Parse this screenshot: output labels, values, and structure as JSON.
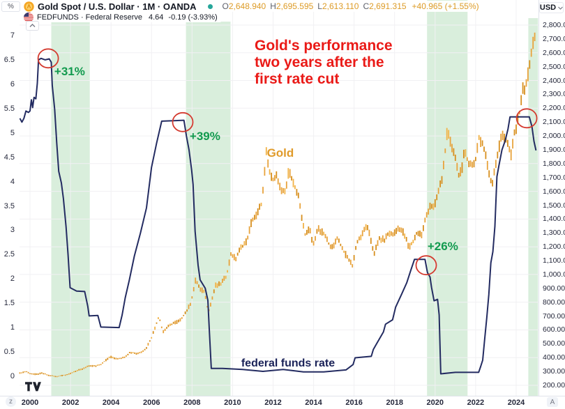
{
  "header": {
    "left_scale_unit": "%",
    "symbol_row": {
      "title": "Gold Spot / U.S. Dollar · 1M · OANDA",
      "ohlc": {
        "o_label": "O",
        "o": "2,648.940",
        "h_label": "H",
        "h": "2,695.595",
        "l_label": "L",
        "l": "2,613.110",
        "c_label": "C",
        "c": "2,691.315",
        "change": "+40.965 (+1.55%)"
      }
    },
    "indicator_row": {
      "title": "FEDFUNDS · Federal Reserve",
      "value": "4.64",
      "change": "-0.19 (-3.93%)"
    },
    "currency_selector": "USD"
  },
  "footer": {
    "zoom_button": "z",
    "auto_button": "A"
  },
  "annotations": {
    "title_lines": [
      "Gold's performance",
      "two years after the",
      "first rate cut"
    ],
    "gold_label": {
      "text": "Gold",
      "year": 2012.36,
      "price": 1875
    },
    "fed_label": {
      "text": "federal funds rate",
      "year": 2012.74,
      "rate": 0.26
    },
    "gains": [
      {
        "label": "+31%",
        "year": 2001.96,
        "rate": 6.26
      },
      {
        "label": "+39%",
        "year": 2008.64,
        "rate": 4.92
      },
      {
        "label": "+26%",
        "year": 2020.38,
        "rate": 2.66
      }
    ],
    "circles": [
      {
        "year": 2000.9,
        "rate": 6.53
      },
      {
        "year": 2007.54,
        "rate": 5.22
      },
      {
        "year": 2019.56,
        "rate": 2.28
      },
      {
        "year": 2024.52,
        "rate": 5.3
      }
    ]
  },
  "colors": {
    "gold": "#e8a33c",
    "gold_dark": "#d78f1e",
    "gold_light": "#f2b347",
    "fed_line": "#232b61",
    "band": "#d9eedc",
    "circle": "#d43a2f",
    "grid": "#f1f0f3",
    "title_red": "#ea1a17",
    "gain_green": "#129a4e",
    "status_green": "#26a69a"
  },
  "chart_data": {
    "type": "mixed",
    "title": "Gold's performance two years after the first rate cut",
    "x_ticks": [
      "2000",
      "2002",
      "2004",
      "2006",
      "2008",
      "2010",
      "2012",
      "2014",
      "2016",
      "2018",
      "2020",
      "2022",
      "2024"
    ],
    "left_axis": {
      "unit": "%",
      "min": 0,
      "max": 7,
      "tick_step": 0.5,
      "tick_labels": [
        "7",
        "6.5",
        "6",
        "5.5",
        "5",
        "4.5",
        "4",
        "3.5",
        "3",
        "2.5",
        "2",
        "1.5",
        "1",
        "0.5",
        "0"
      ]
    },
    "right_axis": {
      "currency": "USD",
      "min": 200,
      "max": 2800,
      "tick_step": 100,
      "grid_step": 200,
      "tick_labels": [
        "2,800.000",
        "2,700.000",
        "2,600.000",
        "2,500.000",
        "2,400.000",
        "2,300.000",
        "2,200.000",
        "2,100.000",
        "2,000.000",
        "1,900.000",
        "1,800.000",
        "1,700.000",
        "1,600.000",
        "1,500.000",
        "1,400.000",
        "1,300.000",
        "1,200.000",
        "1,100.000",
        "1,000.000",
        "900.000",
        "800.000",
        "700.000",
        "600.000",
        "500.000",
        "400.000",
        "300.000",
        "200.000"
      ]
    },
    "highlight_bands": [
      {
        "start": 2001.05,
        "end": 2002.95,
        "gain": "+31%"
      },
      {
        "start": 2007.7,
        "end": 2009.9,
        "gain": "+39%"
      },
      {
        "start": 2019.6,
        "end": 2021.6,
        "gain": "+26%"
      },
      {
        "start": 2024.6,
        "end": 2025.08,
        "gain": null
      }
    ],
    "series": [
      {
        "name": "Gold Spot / U.S. Dollar",
        "type": "ohlc_bars",
        "axis": "right",
        "color": "#e8a33c",
        "points": [
          [
            1999.5,
            288
          ],
          [
            1999.8,
            300
          ],
          [
            2000.0,
            285
          ],
          [
            2000.3,
            279
          ],
          [
            2000.6,
            288
          ],
          [
            2000.9,
            272
          ],
          [
            2001.3,
            262
          ],
          [
            2001.6,
            272
          ],
          [
            2001.9,
            278
          ],
          [
            2002.2,
            300
          ],
          [
            2002.6,
            318
          ],
          [
            2002.95,
            342
          ],
          [
            2003.2,
            338
          ],
          [
            2003.5,
            352
          ],
          [
            2003.95,
            406
          ],
          [
            2004.3,
            392
          ],
          [
            2004.6,
            398
          ],
          [
            2004.95,
            438
          ],
          [
            2005.3,
            428
          ],
          [
            2005.7,
            458
          ],
          [
            2006.0,
            545
          ],
          [
            2006.37,
            700
          ],
          [
            2006.55,
            585
          ],
          [
            2006.8,
            620
          ],
          [
            2007.1,
            650
          ],
          [
            2007.4,
            665
          ],
          [
            2007.75,
            740
          ],
          [
            2007.95,
            800
          ],
          [
            2008.18,
            965
          ],
          [
            2008.4,
            890
          ],
          [
            2008.6,
            880
          ],
          [
            2008.8,
            730
          ],
          [
            2008.95,
            800
          ],
          [
            2009.15,
            920
          ],
          [
            2009.4,
            930
          ],
          [
            2009.7,
            990
          ],
          [
            2009.92,
            1150
          ],
          [
            2010.15,
            1110
          ],
          [
            2010.4,
            1190
          ],
          [
            2010.7,
            1240
          ],
          [
            2010.95,
            1390
          ],
          [
            2011.2,
            1430
          ],
          [
            2011.45,
            1520
          ],
          [
            2011.67,
            1880
          ],
          [
            2011.8,
            1750
          ],
          [
            2011.95,
            1680
          ],
          [
            2012.15,
            1720
          ],
          [
            2012.4,
            1590
          ],
          [
            2012.62,
            1610
          ],
          [
            2012.78,
            1755
          ],
          [
            2013.0,
            1665
          ],
          [
            2013.25,
            1560
          ],
          [
            2013.45,
            1380
          ],
          [
            2013.6,
            1280
          ],
          [
            2013.8,
            1330
          ],
          [
            2013.98,
            1210
          ],
          [
            2014.2,
            1330
          ],
          [
            2014.5,
            1290
          ],
          [
            2014.75,
            1225
          ],
          [
            2014.95,
            1185
          ],
          [
            2015.15,
            1270
          ],
          [
            2015.4,
            1190
          ],
          [
            2015.65,
            1125
          ],
          [
            2015.92,
            1065
          ],
          [
            2016.15,
            1235
          ],
          [
            2016.4,
            1285
          ],
          [
            2016.6,
            1355
          ],
          [
            2016.8,
            1270
          ],
          [
            2016.98,
            1150
          ],
          [
            2017.25,
            1255
          ],
          [
            2017.5,
            1250
          ],
          [
            2017.7,
            1295
          ],
          [
            2017.95,
            1290
          ],
          [
            2018.2,
            1340
          ],
          [
            2018.45,
            1300
          ],
          [
            2018.7,
            1195
          ],
          [
            2018.9,
            1230
          ],
          [
            2019.1,
            1300
          ],
          [
            2019.35,
            1290
          ],
          [
            2019.55,
            1415
          ],
          [
            2019.75,
            1500
          ],
          [
            2019.95,
            1480
          ],
          [
            2020.15,
            1590
          ],
          [
            2020.35,
            1700
          ],
          [
            2020.6,
            2030
          ],
          [
            2020.78,
            1935
          ],
          [
            2020.95,
            1885
          ],
          [
            2021.15,
            1720
          ],
          [
            2021.35,
            1770
          ],
          [
            2021.45,
            1900
          ],
          [
            2021.65,
            1805
          ],
          [
            2021.85,
            1780
          ],
          [
            2022.0,
            1830
          ],
          [
            2022.15,
            1990
          ],
          [
            2022.35,
            1935
          ],
          [
            2022.55,
            1820
          ],
          [
            2022.7,
            1710
          ],
          [
            2022.8,
            1640
          ],
          [
            2022.95,
            1775
          ],
          [
            2023.1,
            1875
          ],
          [
            2023.25,
            1985
          ],
          [
            2023.35,
            2020
          ],
          [
            2023.55,
            1950
          ],
          [
            2023.75,
            1860
          ],
          [
            2023.9,
            2005
          ],
          [
            2024.0,
            2060
          ],
          [
            2024.15,
            2150
          ],
          [
            2024.3,
            2330
          ],
          [
            2024.45,
            2350
          ],
          [
            2024.6,
            2450
          ],
          [
            2024.72,
            2560
          ],
          [
            2024.85,
            2680
          ],
          [
            2024.95,
            2740
          ]
        ]
      },
      {
        "name": "Federal funds rate",
        "type": "line",
        "axis": "left",
        "color": "#232b61",
        "points": [
          [
            1999.5,
            5.3
          ],
          [
            1999.6,
            5.22
          ],
          [
            1999.7,
            5.3
          ],
          [
            1999.8,
            5.45
          ],
          [
            1999.92,
            5.42
          ],
          [
            2000.0,
            5.45
          ],
          [
            2000.07,
            5.68
          ],
          [
            2000.13,
            5.52
          ],
          [
            2000.2,
            5.73
          ],
          [
            2000.29,
            5.7
          ],
          [
            2000.36,
            6.02
          ],
          [
            2000.42,
            6.5
          ],
          [
            2000.55,
            6.53
          ],
          [
            2000.75,
            6.5
          ],
          [
            2000.95,
            6.52
          ],
          [
            2001.05,
            6.45
          ],
          [
            2001.1,
            5.98
          ],
          [
            2001.22,
            5.48
          ],
          [
            2001.32,
            4.8
          ],
          [
            2001.42,
            4.21
          ],
          [
            2001.55,
            3.97
          ],
          [
            2001.65,
            3.65
          ],
          [
            2001.78,
            3.07
          ],
          [
            2001.88,
            2.49
          ],
          [
            2001.98,
            1.82
          ],
          [
            2002.3,
            1.75
          ],
          [
            2002.7,
            1.74
          ],
          [
            2002.85,
            1.44
          ],
          [
            2002.92,
            1.24
          ],
          [
            2003.35,
            1.25
          ],
          [
            2003.5,
            1.01
          ],
          [
            2004.4,
            1.0
          ],
          [
            2004.55,
            1.26
          ],
          [
            2004.7,
            1.61
          ],
          [
            2004.9,
            1.97
          ],
          [
            2005.15,
            2.47
          ],
          [
            2005.45,
            2.94
          ],
          [
            2005.75,
            3.46
          ],
          [
            2006.0,
            4.29
          ],
          [
            2006.25,
            4.79
          ],
          [
            2006.5,
            5.24
          ],
          [
            2007.6,
            5.26
          ],
          [
            2007.72,
            4.94
          ],
          [
            2007.85,
            4.65
          ],
          [
            2007.98,
            4.24
          ],
          [
            2008.05,
            3.94
          ],
          [
            2008.15,
            2.98
          ],
          [
            2008.3,
            2.28
          ],
          [
            2008.4,
            1.98
          ],
          [
            2008.65,
            1.81
          ],
          [
            2008.78,
            1.56
          ],
          [
            2008.85,
            0.97
          ],
          [
            2008.95,
            0.16
          ],
          [
            2009.5,
            0.16
          ],
          [
            2010.5,
            0.14
          ],
          [
            2011.5,
            0.1
          ],
          [
            2012.5,
            0.14
          ],
          [
            2013.5,
            0.09
          ],
          [
            2014.5,
            0.09
          ],
          [
            2015.6,
            0.13
          ],
          [
            2015.95,
            0.24
          ],
          [
            2016.05,
            0.38
          ],
          [
            2016.85,
            0.41
          ],
          [
            2016.95,
            0.55
          ],
          [
            2017.1,
            0.66
          ],
          [
            2017.45,
            0.91
          ],
          [
            2017.55,
            1.07
          ],
          [
            2017.9,
            1.16
          ],
          [
            2018.05,
            1.42
          ],
          [
            2018.35,
            1.69
          ],
          [
            2018.6,
            1.92
          ],
          [
            2018.8,
            2.18
          ],
          [
            2018.98,
            2.4
          ],
          [
            2019.5,
            2.4
          ],
          [
            2019.62,
            2.13
          ],
          [
            2019.75,
            2.04
          ],
          [
            2019.82,
            1.83
          ],
          [
            2019.95,
            1.55
          ],
          [
            2020.12,
            1.58
          ],
          [
            2020.2,
            1.26
          ],
          [
            2020.28,
            0.05
          ],
          [
            2021.0,
            0.08
          ],
          [
            2021.8,
            0.08
          ],
          [
            2022.15,
            0.08
          ],
          [
            2022.25,
            0.2
          ],
          [
            2022.35,
            0.33
          ],
          [
            2022.45,
            0.77
          ],
          [
            2022.55,
            1.21
          ],
          [
            2022.65,
            1.68
          ],
          [
            2022.75,
            2.33
          ],
          [
            2022.85,
            2.56
          ],
          [
            2022.95,
            3.08
          ],
          [
            2023.05,
            4.1
          ],
          [
            2023.15,
            4.33
          ],
          [
            2023.3,
            4.65
          ],
          [
            2023.45,
            4.83
          ],
          [
            2023.6,
            5.08
          ],
          [
            2023.7,
            5.33
          ],
          [
            2024.65,
            5.33
          ],
          [
            2024.78,
            5.13
          ],
          [
            2024.88,
            4.83
          ],
          [
            2024.98,
            4.64
          ]
        ]
      }
    ]
  }
}
